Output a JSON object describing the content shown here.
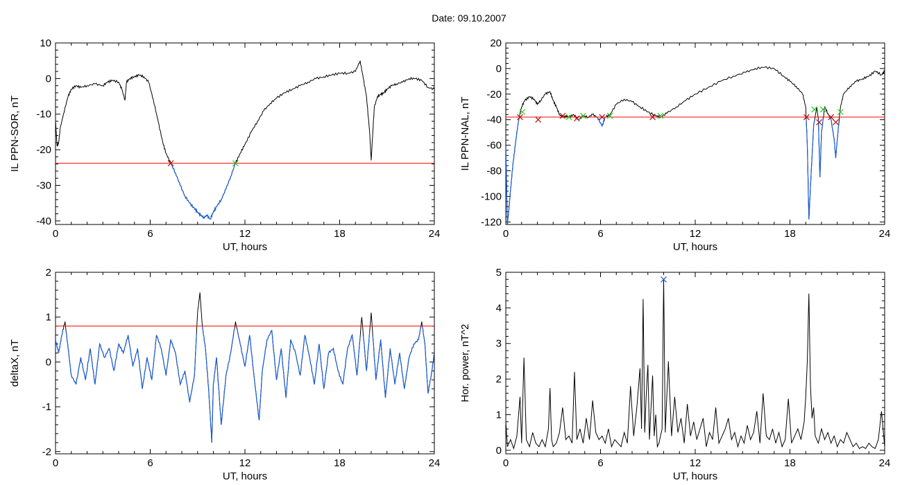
{
  "figure": {
    "title": "Date:  09.10.2007"
  },
  "colors": {
    "series": "#000000",
    "threshold": "#ff0000",
    "below": "#1c5fd6",
    "mark_start": "#b01010",
    "mark_end": "#22cc22",
    "peak_mark": "#2255cc"
  },
  "chart_data": [
    {
      "id": "sor",
      "type": "line",
      "xlabel": "UT, hours",
      "ylabel": "IL PPN-SOR, nT",
      "xlim": [
        0,
        24
      ],
      "ylim": [
        -41,
        10
      ],
      "xticks": [
        0,
        6,
        12,
        18,
        24
      ],
      "yticks": [
        10,
        0,
        -10,
        -20,
        -30,
        -40
      ],
      "threshold": -23.8,
      "x": [
        0,
        0.1,
        0.2,
        0.3,
        0.5,
        0.8,
        1.0,
        1.3,
        1.6,
        2.0,
        2.5,
        3.0,
        3.3,
        3.6,
        4.0,
        4.2,
        4.4,
        4.5,
        4.7,
        5.0,
        5.3,
        5.6,
        5.9,
        6.2,
        6.5,
        6.8,
        7.0,
        7.3,
        7.6,
        7.9,
        8.2,
        8.5,
        8.8,
        9.0,
        9.2,
        9.4,
        9.6,
        9.8,
        10.0,
        10.2,
        10.5,
        10.8,
        11.1,
        11.4,
        11.7,
        12.0,
        12.4,
        12.8,
        13.2,
        13.6,
        14.0,
        14.5,
        15.0,
        15.5,
        16.0,
        16.5,
        17.0,
        17.5,
        18.0,
        18.5,
        19.0,
        19.3,
        19.5,
        19.7,
        19.9,
        20.0,
        20.1,
        20.2,
        20.4,
        20.6,
        20.8,
        21.0,
        21.3,
        21.6,
        22.0,
        22.4,
        22.8,
        23.2,
        23.6,
        24.0
      ],
      "y": [
        -12,
        -19,
        -18,
        -14,
        -10,
        -5,
        -3,
        -2,
        -2.5,
        -2,
        -1.5,
        -2,
        -1,
        -0.5,
        -1,
        -3,
        -6,
        -1,
        0,
        0.5,
        1,
        0.5,
        -1,
        -6,
        -12,
        -18,
        -21,
        -23.8,
        -26.5,
        -30,
        -33,
        -35,
        -36.5,
        -37.5,
        -38.5,
        -39,
        -38.5,
        -39.5,
        -37.5,
        -36,
        -34,
        -31,
        -27.5,
        -23.8,
        -21,
        -18.5,
        -15,
        -12,
        -9,
        -7,
        -5.5,
        -4,
        -3,
        -2,
        -1,
        0,
        0.5,
        1,
        1.5,
        1.5,
        2,
        5,
        0,
        -5,
        -15,
        -23,
        -15,
        -8,
        -5,
        -4.5,
        -4,
        -3,
        -2,
        -1.5,
        -1,
        0,
        0,
        -0.5,
        -2.5,
        -3
      ],
      "marks": [
        {
          "x": 7.3,
          "y": -23.8,
          "kind": "start"
        },
        {
          "x": 11.4,
          "y": -23.8,
          "kind": "end"
        }
      ]
    },
    {
      "id": "nal",
      "type": "line",
      "xlabel": "UT, hours",
      "ylabel": "IL PPN-NAL, nT",
      "xlim": [
        0,
        24
      ],
      "ylim": [
        -122,
        20
      ],
      "xticks": [
        0,
        6,
        12,
        18,
        24
      ],
      "yticks": [
        20,
        0,
        -20,
        -40,
        -60,
        -80,
        -100,
        -120
      ],
      "threshold": -38,
      "x": [
        0,
        0.05,
        0.1,
        0.2,
        0.3,
        0.45,
        0.6,
        0.75,
        0.9,
        1.0,
        1.2,
        1.5,
        1.8,
        2.0,
        2.2,
        2.5,
        2.8,
        3.0,
        3.2,
        3.4,
        3.6,
        3.8,
        4.0,
        4.3,
        4.6,
        4.9,
        5.2,
        5.5,
        5.8,
        6.1,
        6.3,
        6.6,
        7.0,
        7.5,
        8.0,
        8.5,
        9.0,
        9.5,
        9.8,
        10.2,
        10.8,
        11.4,
        12.0,
        12.8,
        13.6,
        14.4,
        15.2,
        15.8,
        16.4,
        17.0,
        17.6,
        18.0,
        18.4,
        18.8,
        19.0,
        19.1,
        19.2,
        19.35,
        19.5,
        19.7,
        19.8,
        19.9,
        20.0,
        20.2,
        20.4,
        20.6,
        20.8,
        20.9,
        21.0,
        21.2,
        21.4,
        21.8,
        22.2,
        22.6,
        23.0,
        23.4,
        23.8,
        24.0
      ],
      "y": [
        -62,
        -90,
        -122,
        -110,
        -95,
        -75,
        -60,
        -45,
        -35,
        -30,
        -25,
        -22,
        -24,
        -28,
        -25,
        -20,
        -18,
        -25,
        -30,
        -36,
        -38,
        -37,
        -38,
        -36,
        -40,
        -37,
        -38,
        -36,
        -38,
        -45,
        -38,
        -36,
        -28,
        -24,
        -26,
        -30,
        -34,
        -37,
        -38,
        -35,
        -30,
        -25,
        -20,
        -15,
        -10,
        -6,
        -3,
        0,
        1,
        0,
        -6,
        -10,
        -14,
        -20,
        -30,
        -60,
        -118,
        -80,
        -45,
        -30,
        -40,
        -85,
        -50,
        -30,
        -35,
        -40,
        -55,
        -70,
        -55,
        -30,
        -20,
        -14,
        -10,
        -8,
        -6,
        -2,
        -5,
        -2
      ],
      "marks": [
        {
          "x": 0.9,
          "y": -38,
          "kind": "start"
        },
        {
          "x": 1.05,
          "y": -34,
          "kind": "end"
        },
        {
          "x": 2.05,
          "y": -40,
          "kind": "start"
        },
        {
          "x": 3.6,
          "y": -37,
          "kind": "start"
        },
        {
          "x": 4.0,
          "y": -38,
          "kind": "end"
        },
        {
          "x": 4.5,
          "y": -39,
          "kind": "start"
        },
        {
          "x": 4.9,
          "y": -37,
          "kind": "end"
        },
        {
          "x": 6.1,
          "y": -38,
          "kind": "start"
        },
        {
          "x": 6.6,
          "y": -37,
          "kind": "end"
        },
        {
          "x": 9.3,
          "y": -38,
          "kind": "start"
        },
        {
          "x": 9.8,
          "y": -37,
          "kind": "end"
        },
        {
          "x": 19.05,
          "y": -38,
          "kind": "start"
        },
        {
          "x": 19.55,
          "y": -32,
          "kind": "end"
        },
        {
          "x": 19.85,
          "y": -42,
          "kind": "start"
        },
        {
          "x": 20.1,
          "y": -32,
          "kind": "end"
        },
        {
          "x": 20.6,
          "y": -38,
          "kind": "start"
        },
        {
          "x": 20.9,
          "y": -42,
          "kind": "start"
        },
        {
          "x": 21.2,
          "y": -34,
          "kind": "end"
        }
      ]
    },
    {
      "id": "deltax",
      "type": "line",
      "xlabel": "UT, hours",
      "ylabel": "deltaX, nT",
      "xlim": [
        0,
        24
      ],
      "ylim": [
        -2.05,
        2
      ],
      "xticks": [
        0,
        6,
        12,
        18,
        24
      ],
      "yticks": [
        2,
        1,
        0,
        -1,
        -2
      ],
      "threshold": 0.8,
      "x": [
        0,
        0.2,
        0.4,
        0.6,
        0.8,
        1.0,
        1.3,
        1.6,
        1.9,
        2.2,
        2.5,
        2.8,
        3.1,
        3.4,
        3.7,
        4.0,
        4.3,
        4.6,
        4.9,
        5.2,
        5.5,
        5.8,
        6.1,
        6.4,
        6.7,
        7.0,
        7.3,
        7.6,
        7.9,
        8.2,
        8.5,
        8.8,
        9.0,
        9.15,
        9.3,
        9.5,
        9.7,
        9.9,
        10.0,
        10.2,
        10.5,
        10.8,
        11.1,
        11.4,
        11.7,
        12.0,
        12.3,
        12.6,
        12.9,
        13.1,
        13.4,
        13.7,
        14.0,
        14.3,
        14.6,
        14.9,
        15.2,
        15.5,
        15.8,
        16.1,
        16.4,
        16.7,
        17.0,
        17.3,
        17.6,
        17.9,
        18.2,
        18.5,
        18.8,
        19.1,
        19.4,
        19.7,
        20.0,
        20.3,
        20.6,
        20.9,
        21.2,
        21.5,
        21.8,
        22.1,
        22.4,
        22.7,
        23.0,
        23.2,
        23.4,
        23.6,
        23.8,
        24.0
      ],
      "y": [
        0.5,
        0.2,
        0.6,
        0.9,
        0.3,
        -0.3,
        -0.5,
        0.1,
        -0.4,
        0.3,
        -0.5,
        0.4,
        0.1,
        0.3,
        -0.2,
        0.4,
        0.2,
        0.6,
        -0.1,
        0.3,
        -0.6,
        0.1,
        -0.4,
        0.6,
        0.3,
        -0.3,
        0.5,
        0.2,
        -0.5,
        -0.2,
        -0.9,
        -0.3,
        1.1,
        1.55,
        0.8,
        0.3,
        -0.6,
        -1.8,
        -0.5,
        0.1,
        -1.4,
        -0.3,
        0.2,
        0.9,
        0.4,
        -0.1,
        0.6,
        -0.4,
        -1.3,
        -0.2,
        0.5,
        0.7,
        -0.4,
        0.3,
        -0.8,
        0.5,
        0.2,
        -0.3,
        0.6,
        0.1,
        -0.5,
        0.4,
        -0.6,
        0.2,
        0.3,
        -0.2,
        -0.5,
        0.3,
        0.6,
        -0.3,
        1.0,
        -0.2,
        1.1,
        -0.4,
        0.5,
        -0.8,
        0.3,
        -0.5,
        0.2,
        -0.6,
        0.1,
        0.4,
        0.5,
        0.9,
        0.4,
        -0.7,
        -0.3,
        0.2
      ],
      "marks": []
    },
    {
      "id": "power",
      "type": "line",
      "xlabel": "UT, hours",
      "ylabel": "Hor. power, nT^2",
      "xlim": [
        0,
        24
      ],
      "ylim": [
        -0.1,
        5
      ],
      "xticks": [
        0,
        6,
        12,
        18,
        24
      ],
      "yticks": [
        5,
        4,
        3,
        2,
        1,
        0
      ],
      "threshold": null,
      "x": [
        0,
        0.1,
        0.3,
        0.5,
        0.7,
        0.9,
        1.0,
        1.15,
        1.3,
        1.5,
        1.7,
        1.9,
        2.1,
        2.3,
        2.5,
        2.7,
        2.8,
        2.9,
        3.0,
        3.2,
        3.4,
        3.6,
        3.8,
        4.0,
        4.2,
        4.35,
        4.5,
        4.7,
        4.9,
        5.1,
        5.3,
        5.5,
        5.7,
        5.9,
        6.1,
        6.3,
        6.5,
        6.7,
        6.9,
        7.1,
        7.3,
        7.5,
        7.7,
        7.9,
        8.1,
        8.3,
        8.5,
        8.6,
        8.7,
        8.8,
        8.9,
        9.0,
        9.1,
        9.2,
        9.3,
        9.4,
        9.5,
        9.6,
        9.7,
        9.8,
        9.9,
        10.0,
        10.1,
        10.3,
        10.5,
        10.7,
        10.9,
        11.1,
        11.3,
        11.5,
        11.7,
        11.9,
        12.1,
        12.3,
        12.5,
        12.7,
        12.9,
        13.1,
        13.3,
        13.5,
        13.7,
        13.9,
        14.1,
        14.3,
        14.5,
        14.7,
        14.9,
        15.1,
        15.3,
        15.5,
        15.7,
        15.9,
        16.1,
        16.3,
        16.5,
        16.7,
        16.9,
        17.1,
        17.3,
        17.5,
        17.7,
        17.9,
        18.1,
        18.3,
        18.5,
        18.7,
        18.9,
        19.0,
        19.1,
        19.2,
        19.3,
        19.4,
        19.5,
        19.6,
        19.8,
        20.0,
        20.2,
        20.4,
        20.6,
        20.8,
        21.0,
        21.2,
        21.4,
        21.6,
        21.8,
        22.0,
        22.2,
        22.4,
        22.6,
        22.8,
        23.0,
        23.2,
        23.4,
        23.6,
        23.8,
        24.0
      ],
      "y": [
        0.8,
        0.1,
        0.3,
        0.05,
        0.4,
        1.5,
        0.2,
        2.6,
        0.3,
        0.1,
        0.5,
        0.2,
        0.1,
        0.3,
        0.1,
        0.6,
        1.75,
        0.3,
        0.1,
        0.2,
        0.5,
        1.2,
        0.3,
        0.4,
        0.2,
        2.2,
        0.3,
        0.6,
        0.2,
        0.9,
        0.3,
        1.4,
        0.5,
        0.3,
        0.4,
        0.2,
        0.6,
        0.1,
        0.3,
        0.2,
        0.1,
        0.5,
        0.2,
        1.8,
        0.4,
        1.2,
        2.3,
        0.6,
        4.25,
        0.5,
        1.6,
        2.4,
        0.3,
        1.2,
        2.1,
        0.4,
        1.0,
        0.1,
        0.2,
        0.4,
        0.6,
        4.8,
        0.5,
        2.5,
        0.4,
        1.5,
        0.5,
        0.9,
        0.2,
        1.3,
        0.4,
        0.8,
        0.3,
        0.6,
        0.9,
        0.1,
        0.5,
        0.3,
        1.2,
        0.2,
        0.4,
        0.6,
        0.9,
        0.3,
        0.5,
        0.1,
        0.4,
        0.2,
        0.7,
        0.3,
        0.5,
        1.1,
        0.2,
        1.6,
        0.4,
        0.3,
        0.6,
        0.2,
        0.5,
        0.1,
        0.3,
        1.45,
        0.2,
        0.4,
        0.6,
        0.3,
        0.8,
        1.5,
        2.5,
        4.4,
        1.8,
        0.9,
        1.2,
        0.4,
        0.2,
        0.6,
        0.3,
        0.5,
        0.2,
        0.4,
        0.1,
        0.3,
        0.2,
        0.5,
        0.3,
        0.1,
        0.2,
        0.05,
        0.1,
        0.05,
        0.2,
        0.1,
        0.05,
        0.3,
        1.1,
        0.1
      ],
      "marks": [
        {
          "x": 10.0,
          "y": 4.8,
          "kind": "peak"
        }
      ]
    }
  ]
}
